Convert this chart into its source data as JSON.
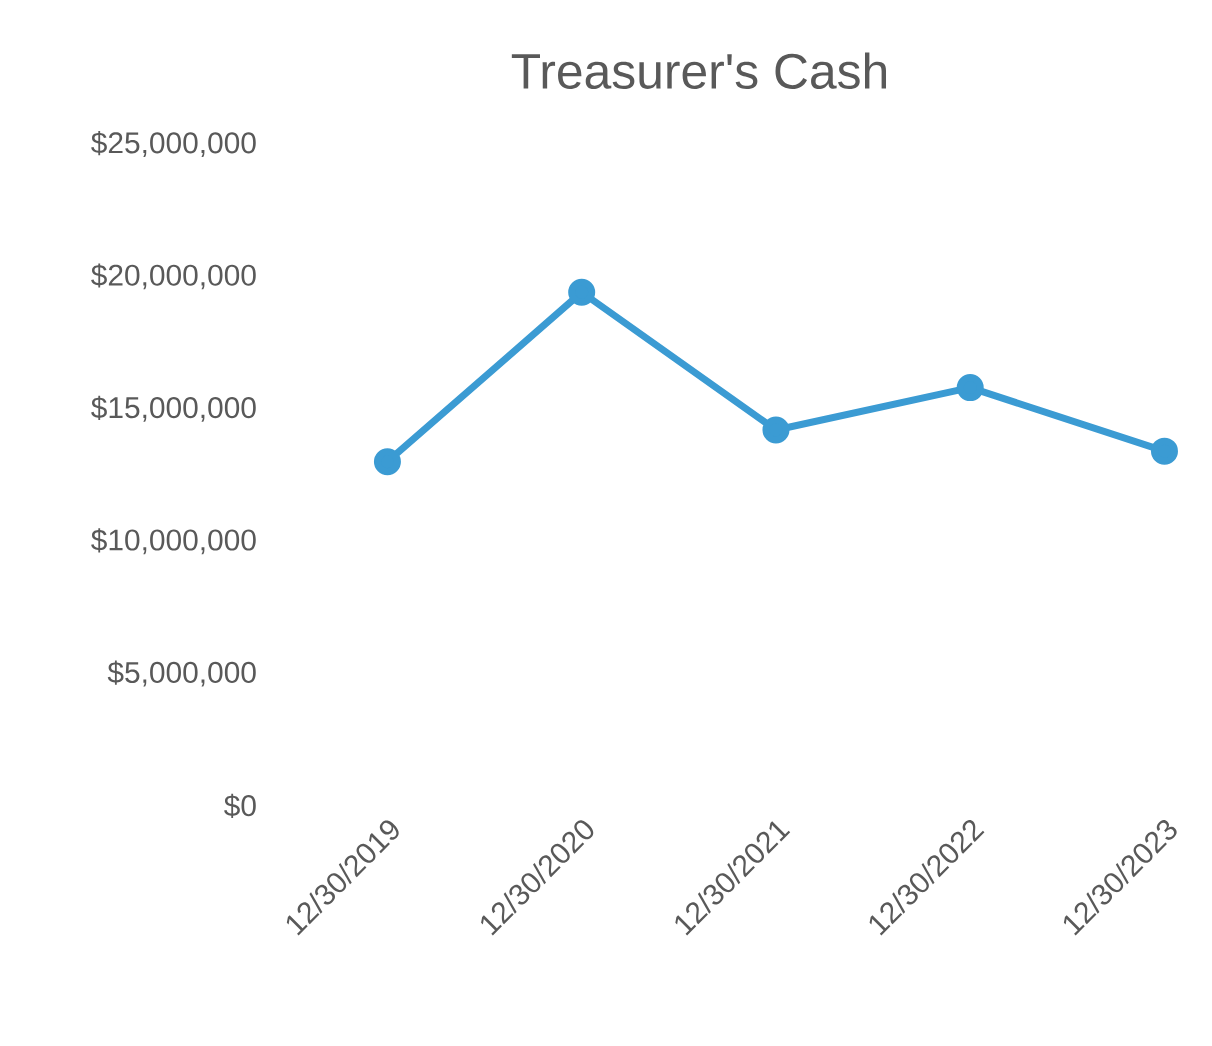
{
  "chart_data": {
    "type": "line",
    "title": "Treasurer's Cash",
    "categories": [
      "12/30/2019",
      "12/30/2020",
      "12/30/2021",
      "12/30/2022",
      "12/30/2023"
    ],
    "values": [
      13000000,
      19400000,
      14200000,
      15800000,
      13400000
    ],
    "color": "#3b9bd3",
    "marker": "circle",
    "line_style": "solid",
    "ylim": [
      0,
      25000000
    ],
    "yticks": [
      {
        "value": 0,
        "label": "$0"
      },
      {
        "value": 5000000,
        "label": "$5,000,000"
      },
      {
        "value": 10000000,
        "label": "$10,000,000"
      },
      {
        "value": 15000000,
        "label": "$15,000,000"
      },
      {
        "value": 20000000,
        "label": "$20,000,000"
      },
      {
        "value": 25000000,
        "label": "$25,000,000"
      }
    ]
  }
}
